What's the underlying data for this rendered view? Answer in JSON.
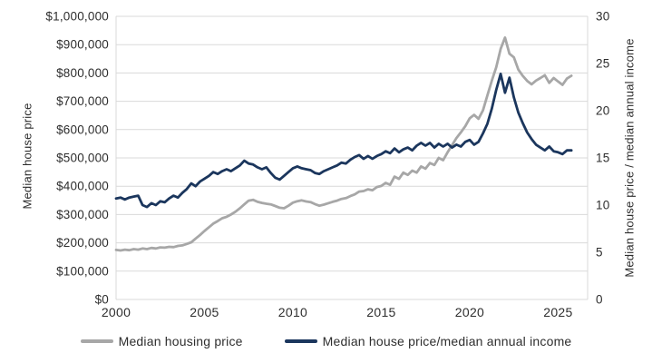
{
  "chart_data": {
    "type": "line",
    "title": "",
    "ylabel_left": "Median house price",
    "ylabel_right": "Median house price / median annual income",
    "xlabel": "",
    "grid": "horizontal",
    "grid_color": "#d9d9d9",
    "tick_text_color": "#2e2e2e",
    "legend_position": "bottom",
    "x_range": [
      2000,
      2026.67
    ],
    "x_ticks": [
      {
        "value": 2000,
        "label": "2000"
      },
      {
        "value": 2005,
        "label": "2005"
      },
      {
        "value": 2010,
        "label": "2010"
      },
      {
        "value": 2015,
        "label": "2015"
      },
      {
        "value": 2020,
        "label": "2020"
      },
      {
        "value": 2025,
        "label": "2025"
      }
    ],
    "y_left": {
      "range": [
        0,
        1000000
      ],
      "tick_values": [
        0,
        100000,
        200000,
        300000,
        400000,
        500000,
        600000,
        700000,
        800000,
        900000,
        1000000
      ],
      "tick_labels": [
        "$0",
        "$100,000",
        "$200,000",
        "$300,000",
        "$400,000",
        "$500,000",
        "$600,000",
        "$700,000",
        "$800,000",
        "$900,000",
        "$1,000,000"
      ]
    },
    "y_right": {
      "range": [
        0,
        30
      ],
      "tick_values": [
        0,
        5,
        10,
        15,
        20,
        25,
        30
      ],
      "tick_labels": [
        "0",
        "5",
        "10",
        "15",
        "20",
        "25",
        "30"
      ]
    },
    "x": [
      2000,
      2000.25,
      2000.5,
      2000.75,
      2001,
      2001.25,
      2001.5,
      2001.75,
      2002,
      2002.25,
      2002.5,
      2002.75,
      2003,
      2003.25,
      2003.5,
      2003.75,
      2004,
      2004.25,
      2004.5,
      2004.75,
      2005,
      2005.25,
      2005.5,
      2005.75,
      2006,
      2006.25,
      2006.5,
      2006.75,
      2007,
      2007.25,
      2007.5,
      2007.75,
      2008,
      2008.25,
      2008.5,
      2008.75,
      2009,
      2009.25,
      2009.5,
      2009.75,
      2010,
      2010.25,
      2010.5,
      2010.75,
      2011,
      2011.25,
      2011.5,
      2011.75,
      2012,
      2012.25,
      2012.5,
      2012.75,
      2013,
      2013.25,
      2013.5,
      2013.75,
      2014,
      2014.25,
      2014.5,
      2014.75,
      2015,
      2015.25,
      2015.5,
      2015.75,
      2016,
      2016.25,
      2016.5,
      2016.75,
      2017,
      2017.25,
      2017.5,
      2017.75,
      2018,
      2018.25,
      2018.5,
      2018.75,
      2019,
      2019.25,
      2019.5,
      2019.75,
      2020,
      2020.25,
      2020.5,
      2020.75,
      2021,
      2021.25,
      2021.5,
      2021.75,
      2022,
      2022.25,
      2022.5,
      2022.75,
      2023,
      2023.25,
      2023.5,
      2023.75,
      2024,
      2024.25,
      2024.5,
      2024.75,
      2025,
      2025.25,
      2025.5,
      2025.75
    ],
    "series": [
      {
        "name": "Median housing price",
        "axis": "left",
        "color": "#a7a7a7",
        "values": [
          175000,
          173000,
          176000,
          174000,
          178000,
          176000,
          180000,
          178000,
          182000,
          180000,
          184000,
          183000,
          186000,
          185000,
          189000,
          191000,
          196000,
          202000,
          215000,
          228000,
          242000,
          255000,
          268000,
          277000,
          287000,
          292000,
          300000,
          310000,
          322000,
          336000,
          349000,
          352000,
          345000,
          341000,
          338000,
          336000,
          330000,
          324000,
          322000,
          331000,
          342000,
          347000,
          350000,
          346000,
          344000,
          337000,
          331000,
          335000,
          340000,
          345000,
          349000,
          355000,
          358000,
          365000,
          371000,
          381000,
          383000,
          389000,
          386000,
          397000,
          401000,
          412000,
          405000,
          434000,
          426000,
          448000,
          440000,
          455000,
          448000,
          470000,
          462000,
          482000,
          475000,
          500000,
          492000,
          520000,
          545000,
          570000,
          590000,
          612000,
          640000,
          652000,
          638000,
          668000,
          720000,
          772000,
          820000,
          885000,
          925000,
          868000,
          855000,
          812000,
          790000,
          772000,
          760000,
          773000,
          782000,
          792000,
          765000,
          782000,
          770000,
          758000,
          780000,
          790000
        ]
      },
      {
        "name": "Median house price/median annual income",
        "axis": "right",
        "color": "#1b365d",
        "values": [
          10.7,
          10.8,
          10.6,
          10.8,
          10.9,
          11.0,
          10.0,
          9.8,
          10.2,
          10.0,
          10.4,
          10.3,
          10.7,
          11.0,
          10.8,
          11.3,
          11.7,
          12.3,
          12.0,
          12.5,
          12.8,
          13.1,
          13.5,
          13.3,
          13.6,
          13.8,
          13.6,
          13.9,
          14.2,
          14.7,
          14.4,
          14.3,
          14.0,
          13.8,
          14.0,
          13.4,
          12.9,
          12.7,
          13.1,
          13.5,
          13.9,
          14.1,
          13.9,
          13.8,
          13.7,
          13.4,
          13.3,
          13.6,
          13.8,
          14.0,
          14.2,
          14.5,
          14.4,
          14.8,
          15.1,
          15.3,
          14.9,
          15.2,
          14.9,
          15.2,
          15.4,
          15.7,
          15.5,
          16.0,
          15.6,
          15.9,
          16.1,
          15.8,
          16.3,
          16.6,
          16.3,
          16.6,
          16.1,
          16.5,
          16.2,
          16.5,
          16.1,
          16.4,
          16.2,
          16.7,
          16.9,
          16.4,
          16.7,
          17.6,
          18.6,
          20.2,
          22.2,
          23.9,
          21.9,
          23.5,
          21.4,
          19.8,
          18.7,
          17.7,
          17.0,
          16.4,
          16.1,
          15.8,
          16.2,
          15.7,
          15.6,
          15.4,
          15.8,
          15.8
        ]
      }
    ]
  }
}
